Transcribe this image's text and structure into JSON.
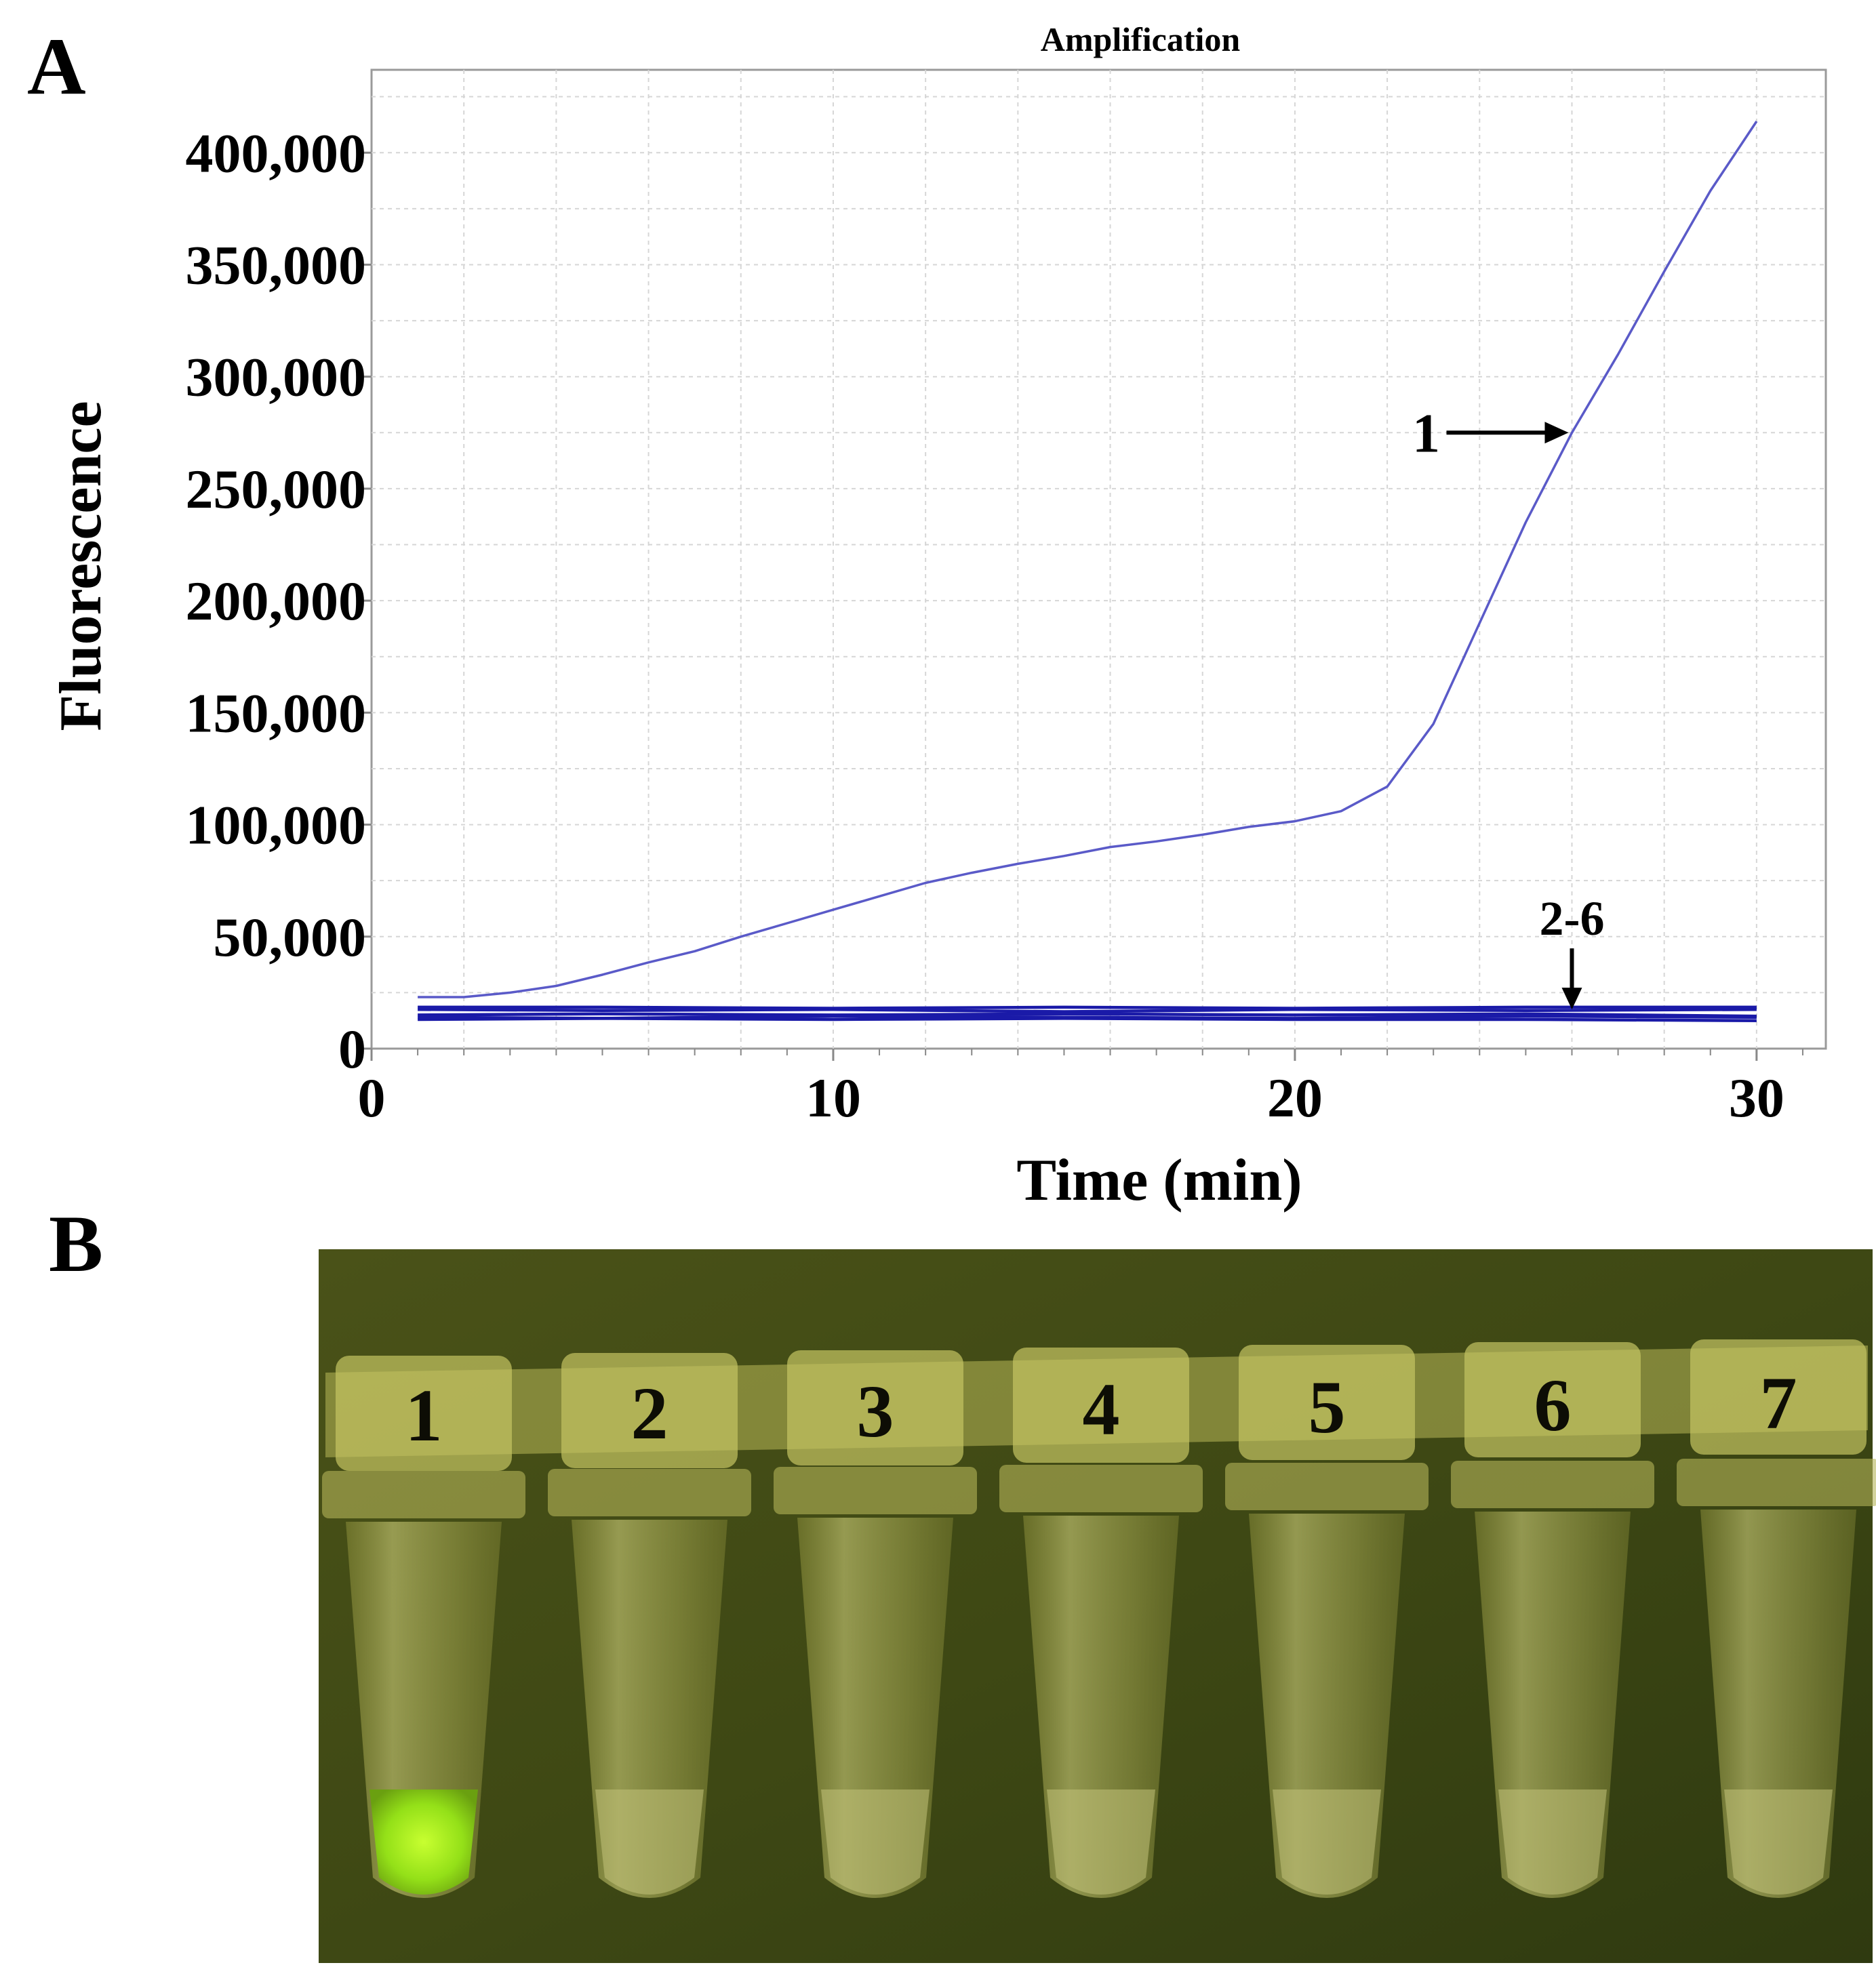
{
  "panel_a_label": "A",
  "panel_b_label": "B",
  "chart_data": {
    "type": "line",
    "title": "Amplification",
    "xlabel": "Time (min)",
    "ylabel": "Fluorescence",
    "xlim": [
      0,
      31.5
    ],
    "ylim": [
      0,
      437000
    ],
    "xticks": [
      0,
      10,
      20,
      30
    ],
    "xtick_labels": [
      "0",
      "10",
      "20",
      "30"
    ],
    "yticks": [
      0,
      50000,
      100000,
      150000,
      200000,
      250000,
      300000,
      350000,
      400000
    ],
    "ytick_labels": [
      "0",
      "50,000",
      "100,000",
      "150,000",
      "200,000",
      "250,000",
      "300,000",
      "350,000",
      "400,000"
    ],
    "grid": true,
    "line_color": "#5a5ac8",
    "flat_line_color": "#1a1aa8",
    "series": [
      {
        "name": "1",
        "x": [
          1,
          2,
          3,
          4,
          5,
          6,
          7,
          8,
          9,
          10,
          11,
          12,
          13,
          14,
          15,
          16,
          17,
          18,
          19,
          20,
          21,
          22,
          23,
          24,
          25,
          26,
          27,
          28,
          29,
          30
        ],
        "y": [
          23000,
          23000,
          25000,
          28000,
          33000,
          38500,
          43500,
          50000,
          56000,
          62000,
          68000,
          74000,
          78500,
          82500,
          86000,
          90000,
          92500,
          95500,
          99000,
          101500,
          106000,
          117000,
          145000,
          190000,
          235000,
          275000,
          310000,
          347000,
          383000,
          414000
        ]
      },
      {
        "name": "2",
        "x": [
          1,
          5,
          10,
          15,
          20,
          25,
          30
        ],
        "y": [
          18500,
          18500,
          18000,
          18500,
          18000,
          18500,
          18500
        ]
      },
      {
        "name": "3",
        "x": [
          1,
          5,
          10,
          15,
          20,
          25,
          30
        ],
        "y": [
          17500,
          17000,
          17500,
          16500,
          17500,
          17000,
          17500
        ]
      },
      {
        "name": "4",
        "x": [
          1,
          5,
          10,
          15,
          20,
          25,
          30
        ],
        "y": [
          15000,
          15500,
          15000,
          15500,
          15000,
          15500,
          14500
        ]
      },
      {
        "name": "5",
        "x": [
          1,
          5,
          10,
          15,
          20,
          25,
          30
        ],
        "y": [
          14000,
          13500,
          14500,
          14000,
          13500,
          14500,
          14000
        ]
      },
      {
        "name": "6",
        "x": [
          1,
          5,
          10,
          15,
          20,
          25,
          30
        ],
        "y": [
          13000,
          13500,
          13000,
          13500,
          13000,
          13000,
          12500
        ]
      }
    ],
    "annotations": [
      {
        "text": "1",
        "x": 26,
        "y": 275000,
        "direction": "right"
      },
      {
        "text": "2-6",
        "x": 26,
        "y": 17500,
        "direction": "down"
      }
    ]
  },
  "photo": {
    "description_labels": [
      "1",
      "2",
      "3",
      "4",
      "5",
      "6",
      "7"
    ],
    "background_color": "#3a4414",
    "tube_color": "#c8c860",
    "positive_color": "#a8f020"
  }
}
